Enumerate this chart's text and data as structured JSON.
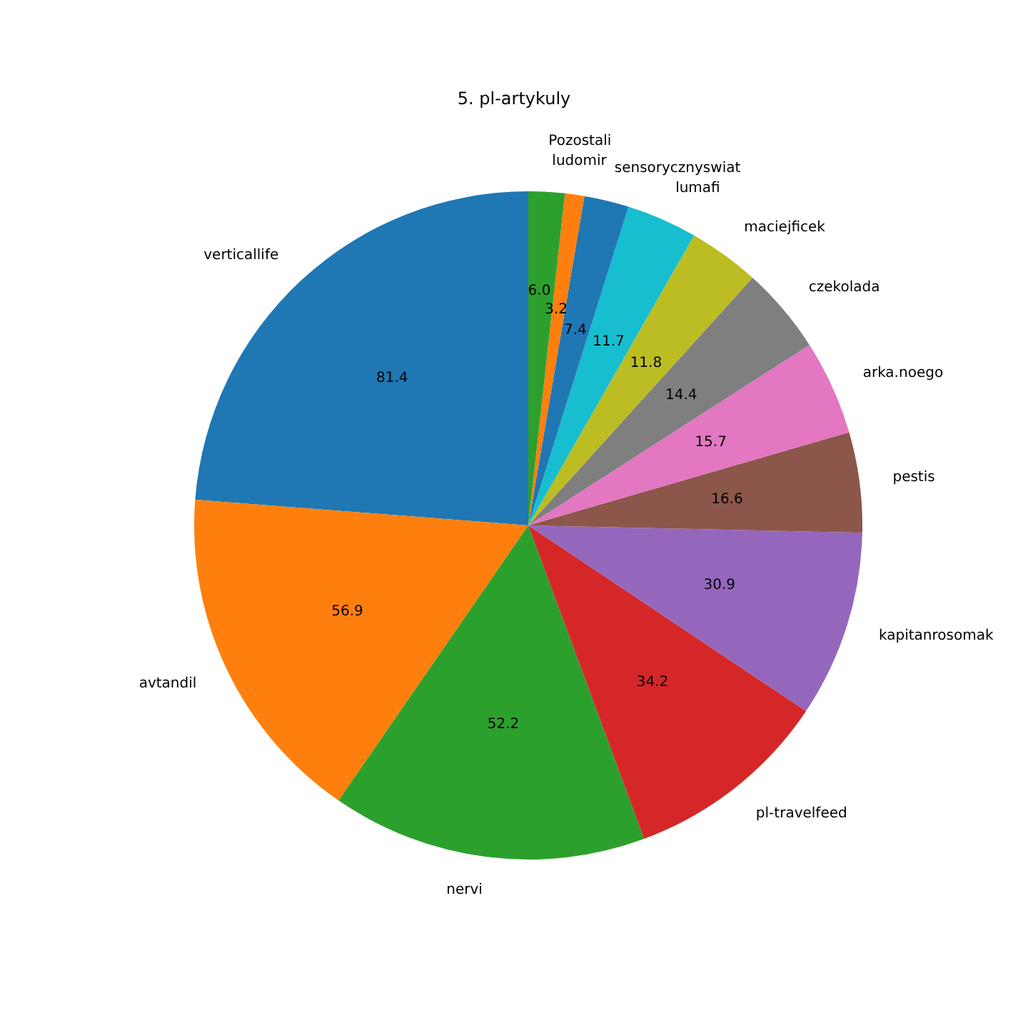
{
  "chart_data": {
    "type": "pie",
    "title": "5. pl-artykuly",
    "categories": [
      "verticallife",
      "avtandil",
      "nervi",
      "pl-travelfeed",
      "kapitanrosomak",
      "pestis",
      "arka.noego",
      "czekolada",
      "maciejficek",
      "lumafi",
      "sensorycznyswiat",
      "ludomir",
      "Pozostali"
    ],
    "values": [
      81.4,
      56.9,
      52.2,
      34.2,
      30.9,
      16.6,
      15.7,
      14.4,
      11.8,
      11.7,
      7.4,
      3.2,
      6.0
    ],
    "colors": [
      "#1f77b4",
      "#ff7f0e",
      "#2ca02c",
      "#d62728",
      "#9467bd",
      "#8c564b",
      "#e377c2",
      "#7f7f7f",
      "#bcbd22",
      "#17becf",
      "#1f77b4",
      "#ff7f0e",
      "#2ca02c"
    ],
    "value_labels": [
      "81.4",
      "56.9",
      "52.2",
      "34.2",
      "30.9",
      "16.6",
      "15.7",
      "14.4",
      "11.8",
      "11.7",
      "7.4",
      "3.2",
      "6.0"
    ],
    "legend": false
  }
}
